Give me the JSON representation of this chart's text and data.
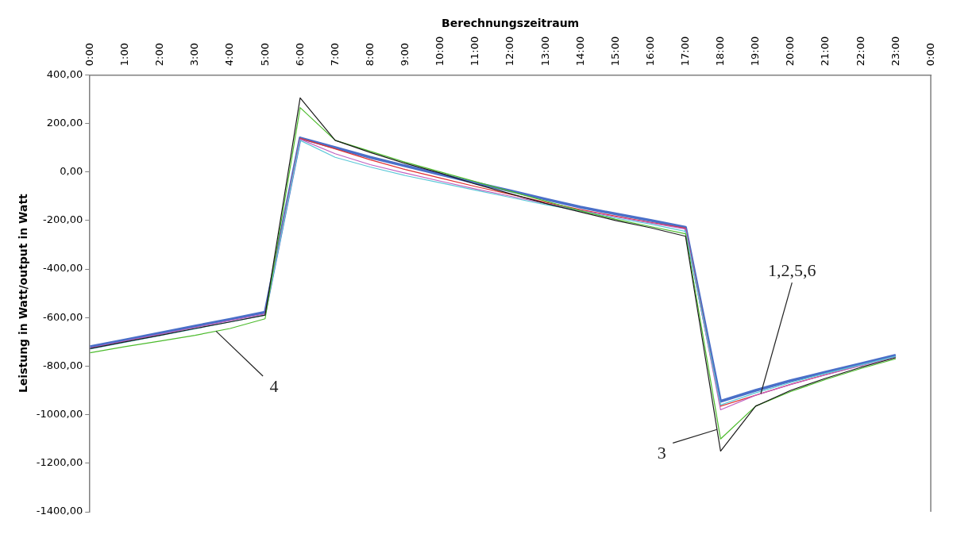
{
  "chart_data": {
    "type": "line",
    "xlabel": "Berechnungszeitraum",
    "ylabel": "Leistung in Watt/output in Watt",
    "x": [
      0,
      1,
      2,
      3,
      4,
      5,
      6,
      7,
      8,
      9,
      10,
      11,
      12,
      13,
      14,
      15,
      16,
      17,
      18,
      19,
      20,
      21,
      22,
      23
    ],
    "series": [
      {
        "color": "#1a1a1a",
        "values": [
          -728,
          -700,
          -673,
          -645,
          -618,
          -590,
          305,
          130,
          80,
          35,
          -5,
          -50,
          -90,
          -130,
          -165,
          -200,
          -230,
          -265,
          -1150,
          -965,
          -900,
          -850,
          -805,
          -765
        ]
      },
      {
        "color": "#4cbb2c",
        "values": [
          -745,
          -720,
          -697,
          -673,
          -645,
          -605,
          265,
          130,
          85,
          40,
          0,
          -40,
          -80,
          -120,
          -160,
          -195,
          -225,
          -255,
          -1100,
          -965,
          -905,
          -855,
          -810,
          -770
        ]
      },
      {
        "color": "#5bc8d8",
        "values": [
          -730,
          -702,
          -674,
          -646,
          -618,
          -590,
          130,
          60,
          20,
          -15,
          -45,
          -75,
          -105,
          -135,
          -160,
          -190,
          -215,
          -245,
          -960,
          -910,
          -868,
          -830,
          -795,
          -760
        ]
      },
      {
        "color": "#c060c0",
        "values": [
          -725,
          -697,
          -669,
          -641,
          -613,
          -585,
          135,
          75,
          30,
          -5,
          -38,
          -70,
          -100,
          -130,
          -158,
          -185,
          -210,
          -235,
          -980,
          -920,
          -876,
          -836,
          -798,
          -762
        ]
      },
      {
        "color": "#e03030",
        "values": [
          null,
          null,
          null,
          null,
          null,
          -585,
          138,
          95,
          50,
          10,
          -25,
          -60,
          -92,
          -125,
          -155,
          -182,
          -208,
          -232,
          -965,
          -920,
          -875,
          -835,
          -797,
          null
        ]
      },
      {
        "color": "#4a6fc8",
        "values": [
          -720,
          -692,
          -664,
          -635,
          -607,
          -578,
          140,
          100,
          60,
          25,
          -10,
          -45,
          -78,
          -112,
          -145,
          -173,
          -200,
          -228,
          -945,
          -900,
          -860,
          -825,
          -790,
          -755
        ]
      }
    ],
    "xlim": [
      0,
      24
    ],
    "xticks": [
      {
        "value": 0,
        "label": "0:00"
      },
      {
        "value": 1,
        "label": "1:00"
      },
      {
        "value": 2,
        "label": "2:00"
      },
      {
        "value": 3,
        "label": "3:00"
      },
      {
        "value": 4,
        "label": "4:00"
      },
      {
        "value": 5,
        "label": "5:00"
      },
      {
        "value": 6,
        "label": "6:00"
      },
      {
        "value": 7,
        "label": "7:00"
      },
      {
        "value": 8,
        "label": "8:00"
      },
      {
        "value": 9,
        "label": "9:00"
      },
      {
        "value": 10,
        "label": "10:00"
      },
      {
        "value": 11,
        "label": "11:00"
      },
      {
        "value": 12,
        "label": "12:00"
      },
      {
        "value": 13,
        "label": "13:00"
      },
      {
        "value": 14,
        "label": "14:00"
      },
      {
        "value": 15,
        "label": "15:00"
      },
      {
        "value": 16,
        "label": "16:00"
      },
      {
        "value": 17,
        "label": "17:00"
      },
      {
        "value": 18,
        "label": "18:00"
      },
      {
        "value": 19,
        "label": "19:00"
      },
      {
        "value": 20,
        "label": "20:00"
      },
      {
        "value": 21,
        "label": "21:00"
      },
      {
        "value": 22,
        "label": "22:00"
      },
      {
        "value": 23,
        "label": "23:00"
      },
      {
        "value": 24,
        "label": "0:00"
      }
    ],
    "ylim": [
      -1400,
      400
    ],
    "yticks": [
      {
        "value": 400,
        "label": "400,00"
      },
      {
        "value": 200,
        "label": "200,00"
      },
      {
        "value": 0,
        "label": "0,00"
      },
      {
        "value": -200,
        "label": "-200,00"
      },
      {
        "value": -400,
        "label": "-400,00"
      },
      {
        "value": -600,
        "label": "-600,00"
      },
      {
        "value": -800,
        "label": "-800,00"
      },
      {
        "value": -1000,
        "label": "-1000,00"
      },
      {
        "value": -1200,
        "label": "-1200,00"
      },
      {
        "value": -1400,
        "label": "-1400,00"
      }
    ],
    "annotations": [
      {
        "text": "4",
        "x": 3.6,
        "y": -656
      },
      {
        "text": "3",
        "x": 17.9,
        "y": -1061
      },
      {
        "text": "1,2,5,6",
        "x": 19.15,
        "y": -913
      }
    ],
    "grid": false,
    "legend": false,
    "marker": "none",
    "line_style": "solid"
  }
}
